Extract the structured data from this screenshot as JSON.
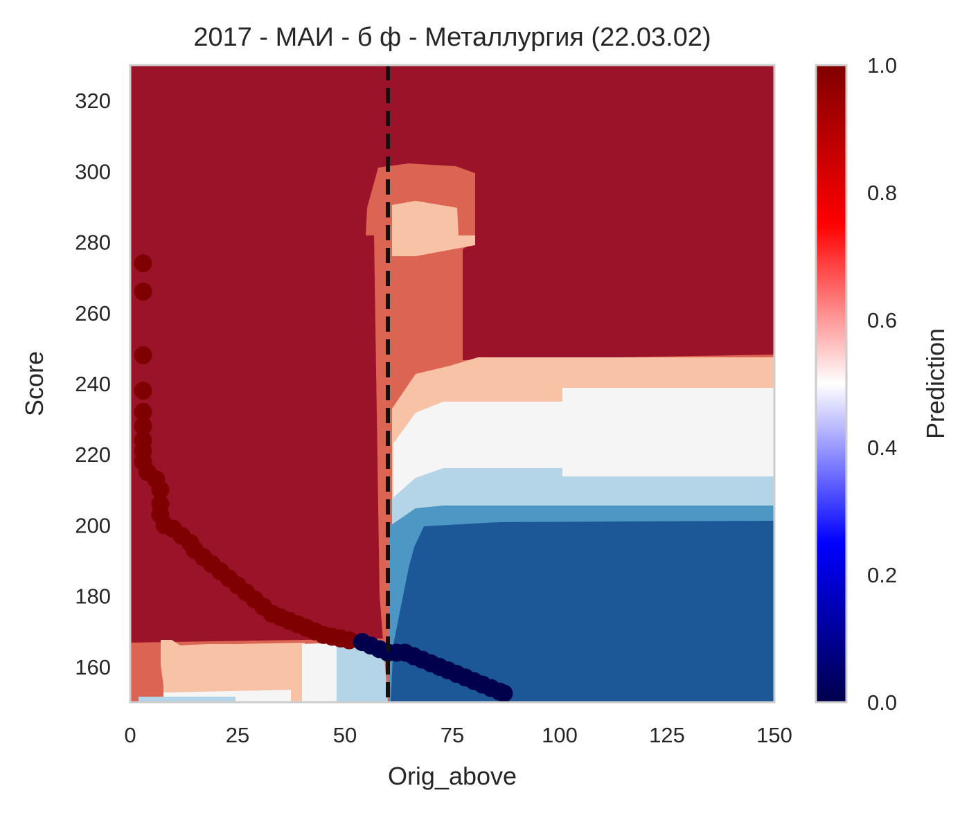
{
  "chart_data": {
    "type": "contour",
    "title": "2017 - МАИ - б ф - Металлургия (22.03.02)",
    "xlabel": "Orig_above",
    "ylabel": "Score",
    "xlim": [
      0,
      150
    ],
    "ylim": [
      150,
      330
    ],
    "xticks": [
      "0",
      "25",
      "50",
      "75",
      "100",
      "125",
      "150"
    ],
    "yticks": [
      "160",
      "180",
      "200",
      "220",
      "240",
      "260",
      "280",
      "300",
      "320"
    ],
    "threshold_x": 60,
    "colorbar": {
      "label": "Prediction",
      "range": [
        0,
        1
      ],
      "ticks": [
        "0.0",
        "0.2",
        "0.4",
        "0.6",
        "0.8",
        "1.0"
      ],
      "colormap": "seismic"
    },
    "contour_colors": {
      "level_1": "#9b1329",
      "level_2": "#db6453",
      "level_3": "#f8c2a7",
      "level_4": "#f5f5f5",
      "level_5": "#b4d5e7",
      "level_6": "#4d97c5",
      "level_7": "#1c5897"
    },
    "series": [
      {
        "name": "",
        "color": "#7f0000",
        "points": [
          [
            3,
            274
          ],
          [
            3,
            266
          ],
          [
            3,
            248
          ],
          [
            3,
            238
          ],
          [
            3,
            232
          ],
          [
            3,
            228
          ],
          [
            3,
            224
          ],
          [
            3,
            221
          ],
          [
            3,
            218
          ],
          [
            4,
            215
          ],
          [
            6,
            213
          ],
          [
            7,
            210
          ],
          [
            7,
            206
          ],
          [
            7,
            203
          ],
          [
            8,
            200
          ],
          [
            10,
            199
          ],
          [
            12,
            197
          ],
          [
            14,
            195
          ],
          [
            15,
            193
          ],
          [
            17,
            191
          ],
          [
            19,
            189
          ],
          [
            21,
            187
          ],
          [
            23,
            185
          ],
          [
            25,
            183
          ],
          [
            27,
            181
          ],
          [
            29,
            179
          ],
          [
            31,
            177
          ],
          [
            33,
            175
          ],
          [
            35,
            174
          ],
          [
            37,
            173
          ],
          [
            39,
            172
          ],
          [
            41,
            171
          ],
          [
            43,
            170
          ],
          [
            45,
            169
          ],
          [
            47,
            168.5
          ],
          [
            49,
            168
          ],
          [
            51,
            167.5
          ]
        ]
      },
      {
        "name": "",
        "color": "#00004c",
        "points": [
          [
            54,
            167
          ],
          [
            56,
            166
          ],
          [
            58,
            165
          ],
          [
            60,
            164
          ],
          [
            62,
            164
          ],
          [
            64,
            164
          ],
          [
            66,
            163
          ],
          [
            68,
            162
          ],
          [
            70,
            161
          ],
          [
            72,
            160
          ],
          [
            74,
            159
          ],
          [
            76,
            158
          ],
          [
            78,
            157
          ],
          [
            80,
            156
          ],
          [
            82,
            155
          ],
          [
            84,
            154
          ],
          [
            86,
            153
          ],
          [
            87,
            152.5
          ]
        ]
      }
    ]
  }
}
